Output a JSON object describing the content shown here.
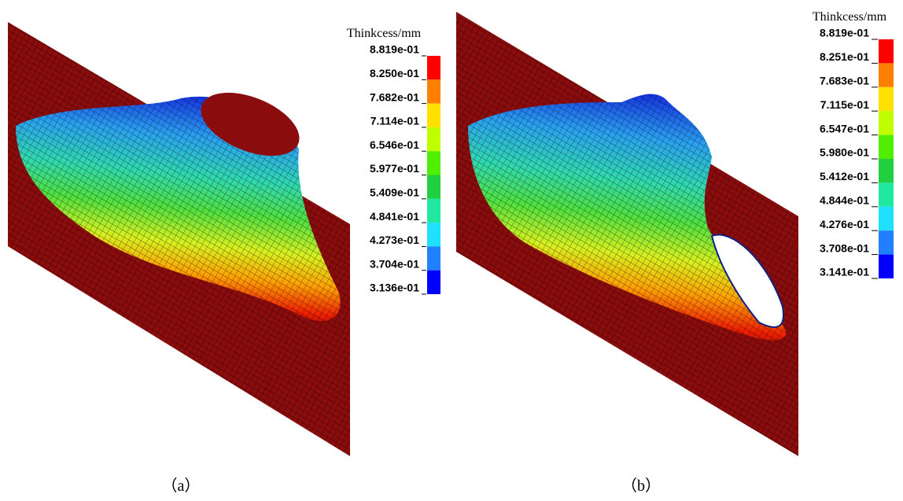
{
  "panels": [
    {
      "legend": {
        "title": "Thinkcess/mm",
        "labels": [
          "8.819e-01",
          "8.250e-01",
          "7.682e-01",
          "7.114e-01",
          "6.546e-01",
          "5.977e-01",
          "5.409e-01",
          "4.841e-01",
          "4.273e-01",
          "3.704e-01",
          "3.136e-01"
        ]
      },
      "caption": "（a）"
    },
    {
      "legend": {
        "title": "Thinkcess/mm",
        "labels": [
          "8.819e-01",
          "8.251e-01",
          "7.683e-01",
          "7.115e-01",
          "6.547e-01",
          "5.980e-01",
          "5.412e-01",
          "4.844e-01",
          "4.276e-01",
          "3.708e-01",
          "3.141e-01"
        ]
      },
      "caption": "（b）"
    }
  ]
}
